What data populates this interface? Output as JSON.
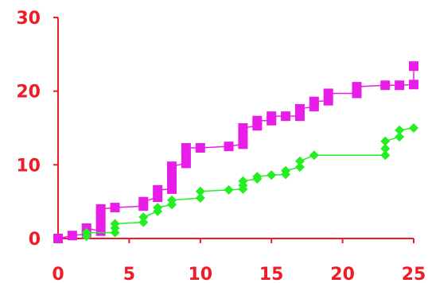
{
  "chart_data": {
    "type": "scatter",
    "title": "",
    "xlabel": "",
    "ylabel": "",
    "xlim": [
      0,
      25
    ],
    "ylim": [
      0,
      30
    ],
    "x_ticks": [
      0,
      5,
      10,
      15,
      20,
      25
    ],
    "y_ticks": [
      0,
      10,
      20,
      30
    ],
    "x_tick_labels": [
      "0",
      "5",
      "10",
      "15",
      "20",
      "25"
    ],
    "y_tick_labels": [
      "0",
      "10",
      "20",
      "30"
    ],
    "grid": false,
    "legend": false,
    "colors": {
      "axis": "#ee1c24",
      "tick_labels": "#ee1c24"
    },
    "series": [
      {
        "color": "#e81ee8",
        "marker": "square",
        "points": [
          [
            0,
            0
          ],
          [
            1,
            0.4
          ],
          [
            2,
            0.6
          ],
          [
            2,
            1.4
          ],
          [
            3,
            1.0
          ],
          [
            3,
            2.0
          ],
          [
            3,
            3.0
          ],
          [
            3,
            4.0
          ],
          [
            4,
            4.2
          ],
          [
            6,
            4.4
          ],
          [
            6,
            5.0
          ],
          [
            7,
            5.6
          ],
          [
            7,
            6.6
          ],
          [
            8,
            6.7
          ],
          [
            8,
            7.7
          ],
          [
            8,
            8.8
          ],
          [
            8,
            9.8
          ],
          [
            9,
            10.2
          ],
          [
            9,
            11.3
          ],
          [
            9,
            12.3
          ],
          [
            10,
            12.3
          ],
          [
            12,
            12.5
          ],
          [
            13,
            12.8
          ],
          [
            13,
            13.8
          ],
          [
            13,
            15.0
          ],
          [
            14,
            15.3
          ],
          [
            14,
            16.0
          ],
          [
            15,
            16.0
          ],
          [
            15,
            16.6
          ],
          [
            16,
            16.6
          ],
          [
            17,
            16.6
          ],
          [
            17,
            17.6
          ],
          [
            18,
            17.9
          ],
          [
            18,
            18.6
          ],
          [
            19,
            18.7
          ],
          [
            19,
            19.7
          ],
          [
            21,
            19.7
          ],
          [
            21,
            20.6
          ],
          [
            23,
            20.8
          ],
          [
            24,
            20.8
          ],
          [
            25,
            20.9
          ],
          [
            25,
            23.4
          ]
        ]
      },
      {
        "color": "#22ee22",
        "marker": "diamond",
        "points": [
          [
            2,
            0.3
          ],
          [
            2,
            0.8
          ],
          [
            4,
            0.8
          ],
          [
            4,
            1.4
          ],
          [
            4,
            2.0
          ],
          [
            6,
            2.2
          ],
          [
            6,
            2.9
          ],
          [
            7,
            3.7
          ],
          [
            7,
            4.2
          ],
          [
            8,
            4.6
          ],
          [
            8,
            5.2
          ],
          [
            10,
            5.5
          ],
          [
            10,
            6.4
          ],
          [
            12,
            6.6
          ],
          [
            13,
            6.7
          ],
          [
            13,
            7.2
          ],
          [
            13,
            7.8
          ],
          [
            14,
            8.1
          ],
          [
            14,
            8.4
          ],
          [
            15,
            8.6
          ],
          [
            16,
            8.7
          ],
          [
            16,
            9.2
          ],
          [
            17,
            9.7
          ],
          [
            17,
            10.5
          ],
          [
            18,
            11.3
          ],
          [
            23,
            11.3
          ],
          [
            23,
            12.2
          ],
          [
            23,
            13.2
          ],
          [
            24,
            13.8
          ],
          [
            24,
            14.7
          ],
          [
            25,
            15.0
          ]
        ]
      }
    ]
  }
}
